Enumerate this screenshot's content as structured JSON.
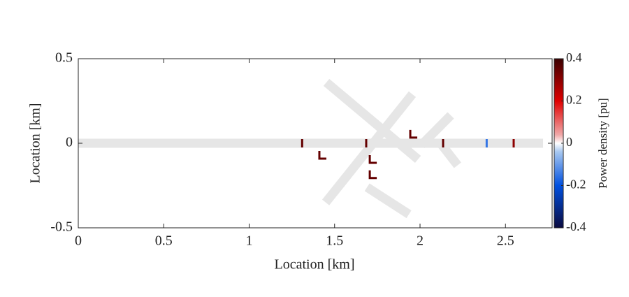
{
  "chart_data": {
    "type": "map",
    "xlabel": "Location [km]",
    "ylabel": "Location [km]",
    "colorbar_label": "Power density [pu]",
    "xlim": [
      0,
      2.773
    ],
    "ylim": [
      -0.5,
      0.5
    ],
    "xticks": [
      0,
      0.5,
      1,
      1.5,
      2,
      2.5
    ],
    "yticks": [
      -0.5,
      0,
      0.5
    ],
    "road_color": "#e6e6e6",
    "roads": [
      {
        "x": [
          0,
          2.72
        ],
        "y": [
          0,
          0
        ]
      },
      {
        "x": [
          1.452,
          1.988
        ],
        "y": [
          0.36,
          -0.095
        ]
      },
      {
        "x": [
          1.955,
          1.448
        ],
        "y": [
          0.29,
          -0.35
        ]
      },
      {
        "x": [
          2.18,
          2.008
        ],
        "y": [
          0.165,
          -0.01
        ]
      },
      {
        "x": [
          1.69,
          1.935
        ],
        "y": [
          -0.26,
          -0.42
        ]
      },
      {
        "x": [
          2.12,
          2.22
        ],
        "y": [
          0,
          -0.13
        ]
      }
    ],
    "points": {
      "x": [
        1.31,
        1.685,
        2.135,
        2.548,
        2.39,
        1.415,
        1.71,
        1.71,
        1.947
      ],
      "y": [
        0,
        0,
        0,
        0,
        0,
        -0.07,
        -0.095,
        -0.185,
        0.054
      ],
      "values": [
        0.35,
        0.35,
        0.35,
        0.3,
        -0.15,
        0.35,
        0.35,
        0.35,
        0.35
      ]
    },
    "clim": [
      -0.4,
      0.4
    ],
    "cticks": [
      -0.4,
      -0.2,
      0,
      0.2,
      0.4
    ]
  }
}
